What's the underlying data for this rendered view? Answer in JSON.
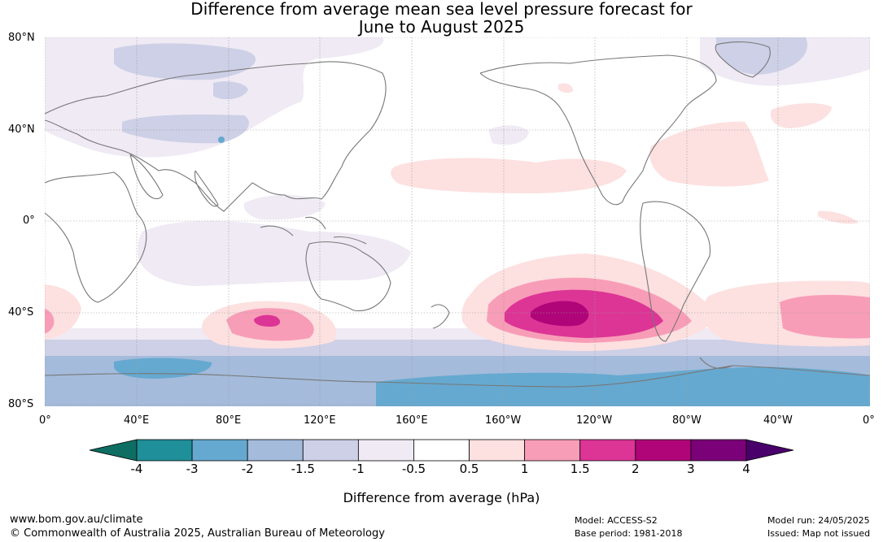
{
  "title": {
    "line1": "Difference from average mean sea level pressure forecast for",
    "line2": "June to August 2025"
  },
  "map": {
    "lat_labels": [
      "80°N",
      "40°N",
      "0°",
      "40°S",
      "80°S"
    ],
    "lon_labels": [
      "0°",
      "40°E",
      "80°E",
      "120°E",
      "160°E",
      "160°W",
      "120°W",
      "80°W",
      "40°W",
      "0°"
    ]
  },
  "colorbar": {
    "label": "Difference from average (hPa)",
    "ticks": [
      "-4",
      "-3",
      "-2",
      "-1.5",
      "-1",
      "-0.5",
      "0.5",
      "1",
      "1.5",
      "2",
      "3",
      "4"
    ],
    "colors": {
      "extend_low": "#0e6e63",
      "c1": "#1f8f99",
      "c2": "#66a9d0",
      "c3": "#a4bbdb",
      "c4": "#cdd0e6",
      "c5": "#efeaf4",
      "c6": "#ffffff",
      "c7": "#fde0e0",
      "c8": "#f89db7",
      "c9": "#dc3596",
      "c10": "#b00578",
      "c11": "#7a0177",
      "extend_high": "#49006a"
    }
  },
  "footer": {
    "site": "www.bom.gov.au/climate",
    "copyright": "© Commonwealth of Australia 2025, Australian Bureau of Meteorology",
    "model": "Model: ACCESS-S2",
    "base_period": "Base period: 1981-2018",
    "model_run": "Model run: 24/05/2025",
    "issued": "Issued: Map not issued"
  }
}
